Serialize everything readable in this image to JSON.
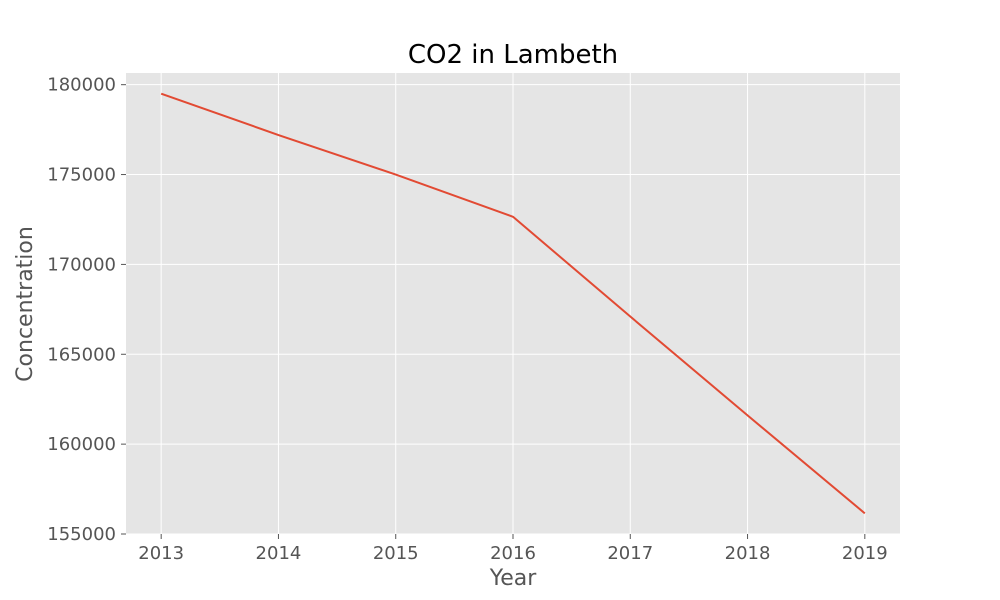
{
  "chart_data": {
    "type": "line",
    "title": "CO2 in Lambeth",
    "xlabel": "Year",
    "ylabel": "Concentration",
    "x": [
      2013,
      2014,
      2015,
      2016,
      2017,
      2018,
      2019
    ],
    "series": [
      {
        "values": [
          179500,
          177200,
          175000,
          172650,
          167100,
          161600,
          156150
        ],
        "color": "#e24a33"
      }
    ],
    "xticks": [
      2013,
      2014,
      2015,
      2016,
      2017,
      2018,
      2019
    ],
    "xtick_labels": [
      "2013",
      "2014",
      "2015",
      "2016",
      "2017",
      "2018",
      "2019"
    ],
    "yticks": [
      155000,
      160000,
      165000,
      170000,
      175000,
      180000
    ],
    "ytick_labels": [
      "155000",
      "160000",
      "165000",
      "170000",
      "175000",
      "180000"
    ],
    "xlim": [
      2012.7,
      2019.3
    ],
    "ylim": [
      155000,
      180650
    ],
    "grid": true,
    "legend": "none",
    "colors": {
      "plot_background": "#e5e5e5",
      "grid": "#ffffff",
      "tick_text": "#555555",
      "title_text": "#000000"
    }
  }
}
